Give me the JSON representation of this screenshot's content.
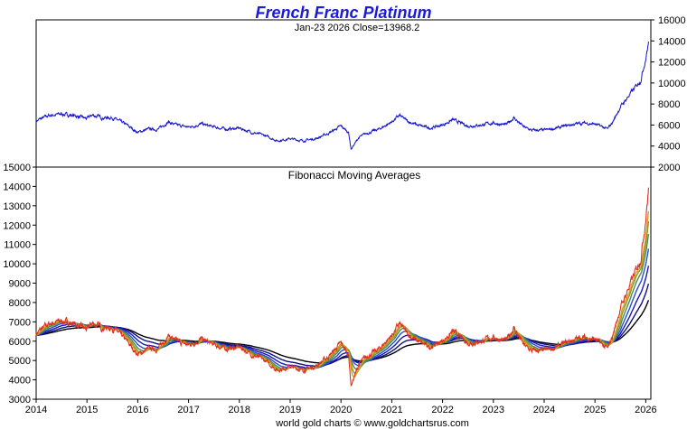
{
  "chart_data": [
    {
      "type": "line",
      "title": "French Franc Platinum",
      "subtitle": "Jan-23  2026   Close=13968.2",
      "y_ticks": [
        "2000",
        "4000",
        "6000",
        "8000",
        "10000",
        "12000",
        "14000",
        "16000"
      ],
      "ylim": [
        2000,
        16000
      ],
      "xlim": [
        2014.0,
        2026.1
      ],
      "series": [
        {
          "color": "#1414d2",
          "points": [
            [
              2014.0,
              6400
            ],
            [
              2014.25,
              6900
            ],
            [
              2014.5,
              7050
            ],
            [
              2014.75,
              6900
            ],
            [
              2015.0,
              6600
            ],
            [
              2015.1,
              6950
            ],
            [
              2015.3,
              6700
            ],
            [
              2015.5,
              6700
            ],
            [
              2015.75,
              6100
            ],
            [
              2016.0,
              5300
            ],
            [
              2016.2,
              5600
            ],
            [
              2016.4,
              5600
            ],
            [
              2016.6,
              6300
            ],
            [
              2016.75,
              6000
            ],
            [
              2017.0,
              5800
            ],
            [
              2017.25,
              6100
            ],
            [
              2017.5,
              5800
            ],
            [
              2017.75,
              5600
            ],
            [
              2018.0,
              5700
            ],
            [
              2018.25,
              5300
            ],
            [
              2018.5,
              5000
            ],
            [
              2018.75,
              4500
            ],
            [
              2019.0,
              4700
            ],
            [
              2019.25,
              4500
            ],
            [
              2019.5,
              4700
            ],
            [
              2019.75,
              5200
            ],
            [
              2020.0,
              5900
            ],
            [
              2020.15,
              5300
            ],
            [
              2020.2,
              3700
            ],
            [
              2020.35,
              4800
            ],
            [
              2020.5,
              5200
            ],
            [
              2020.75,
              5600
            ],
            [
              2021.0,
              6300
            ],
            [
              2021.15,
              6900
            ],
            [
              2021.3,
              6400
            ],
            [
              2021.5,
              6000
            ],
            [
              2021.75,
              5700
            ],
            [
              2022.0,
              6000
            ],
            [
              2022.2,
              6500
            ],
            [
              2022.5,
              5900
            ],
            [
              2022.75,
              6000
            ],
            [
              2023.0,
              6200
            ],
            [
              2023.25,
              6000
            ],
            [
              2023.4,
              6700
            ],
            [
              2023.6,
              5800
            ],
            [
              2023.75,
              5500
            ],
            [
              2024.0,
              5500
            ],
            [
              2024.25,
              5700
            ],
            [
              2024.5,
              6000
            ],
            [
              2024.75,
              6200
            ],
            [
              2025.0,
              6100
            ],
            [
              2025.25,
              5600
            ],
            [
              2025.35,
              6300
            ],
            [
              2025.5,
              7700
            ],
            [
              2025.7,
              9000
            ],
            [
              2025.8,
              9600
            ],
            [
              2025.9,
              10300
            ],
            [
              2026.0,
              12400
            ],
            [
              2026.06,
              13968
            ]
          ]
        }
      ]
    },
    {
      "type": "line",
      "title": "Fibonacci Moving Averages",
      "y_ticks": [
        "3000",
        "4000",
        "5000",
        "6000",
        "7000",
        "8000",
        "9000",
        "10000",
        "11000",
        "12000",
        "13000",
        "14000",
        "15000"
      ],
      "ylim": [
        3000,
        15000
      ],
      "x_ticks": [
        "2014",
        "2015",
        "2016",
        "2017",
        "2018",
        "2019",
        "2020",
        "2021",
        "2022",
        "2023",
        "2024",
        "2025",
        "2026"
      ],
      "xlim": [
        2014.0,
        2026.1
      ],
      "series": [
        {
          "color": "#e03020",
          "smoothing": 0
        },
        {
          "color": "#d4a020",
          "smoothing": 5
        },
        {
          "color": "#8a9a20",
          "smoothing": 8
        },
        {
          "color": "#4a8a60",
          "smoothing": 13
        },
        {
          "color": "#2a50c8",
          "smoothing": 21
        },
        {
          "color": "#1818c0",
          "smoothing": 34
        },
        {
          "color": "#101080",
          "smoothing": 55
        },
        {
          "color": "#000000",
          "smoothing": 89
        }
      ]
    }
  ],
  "footer": "world gold charts © www.goldchartsrus.com"
}
